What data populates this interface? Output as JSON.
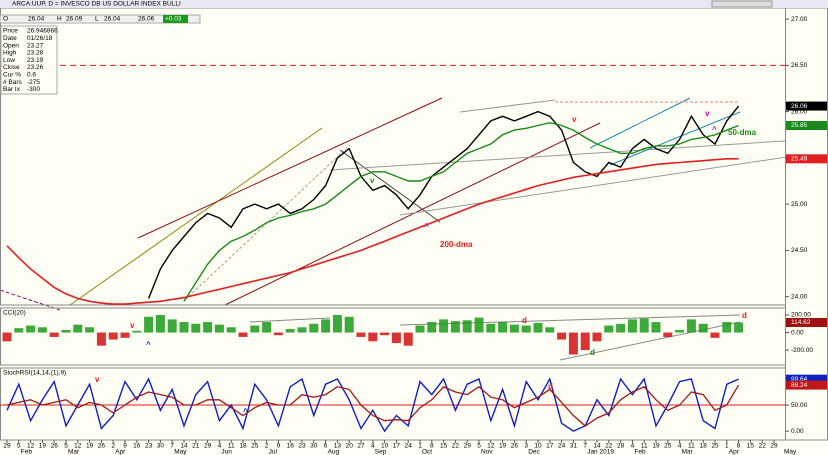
{
  "toolbar": {
    "symbol": "ARCA:UUP, D = INVESCO DB US DOLLAR INDEX BULLI",
    "o_label": "O",
    "open": "26.04",
    "h_label": "H",
    "high": "26.09",
    "l_label": "L",
    "low": "26.04",
    "close": "26.06",
    "change": "+0.03"
  },
  "info": [
    {
      "label": "Price",
      "value": "26.946866"
    },
    {
      "label": "Date",
      "value": "01/26/18"
    },
    {
      "label": "Open",
      "value": "23.27"
    },
    {
      "label": "High",
      "value": "23.28"
    },
    {
      "label": "Low",
      "value": "23.19"
    },
    {
      "label": "Close",
      "value": "23.26"
    },
    {
      "label": "Cur %",
      "value": "0.6"
    },
    {
      "label": "# Bars",
      "value": "-275"
    },
    {
      "label": "Bar Ix",
      "value": "-300"
    }
  ],
  "months": [
    "Feb",
    "Mar",
    "Apr",
    "May",
    "Jun",
    "Jul",
    "Aug",
    "Sep",
    "Oct",
    "Nov",
    "Dec",
    "Jan 2019",
    "Feb",
    "Mar",
    "Apr",
    "May"
  ],
  "chart_data": [
    {
      "type": "line",
      "pane": "price",
      "categories": [
        "29",
        "5",
        "12",
        "19",
        "26",
        "5",
        "12",
        "19",
        "26",
        "2",
        "9",
        "16",
        "23",
        "30",
        "7",
        "14",
        "21",
        "29",
        "4",
        "11",
        "18",
        "25",
        "2",
        "9",
        "16",
        "23",
        "30",
        "6",
        "13",
        "20",
        "27",
        "4",
        "10",
        "17",
        "24",
        "1",
        "8",
        "15",
        "22",
        "29",
        "5",
        "12",
        "19",
        "26",
        "3",
        "10",
        "17",
        "24",
        "31",
        "7",
        "14",
        "22",
        "28",
        "4",
        "11",
        "19",
        "25",
        "4",
        "11",
        "18",
        "25",
        "1",
        "8",
        "15",
        "22",
        "29"
      ],
      "ylim": [
        23.91,
        27.12
      ],
      "yticks": [
        {
          "value": 27,
          "label": "27.00"
        },
        {
          "value": 26.5,
          "label": "26.50"
        },
        {
          "value": 26,
          "label": "26.00"
        },
        {
          "value": 25.5,
          "label": "25.50"
        },
        {
          "value": 25,
          "label": "25.00"
        },
        {
          "value": 24.5,
          "label": "24.50"
        },
        {
          "value": 24,
          "label": "24.00"
        }
      ],
      "hline": {
        "value": 26.5,
        "color": "#e02020"
      },
      "series": [
        {
          "name": "UUP",
          "color": "#000000",
          "width": 1.4,
          "values": [
            null,
            null,
            null,
            null,
            null,
            null,
            null,
            null,
            null,
            null,
            null,
            null,
            23.98,
            24.3,
            24.5,
            24.65,
            24.8,
            24.9,
            24.85,
            24.75,
            24.95,
            25.0,
            24.95,
            25.0,
            24.9,
            24.95,
            25.05,
            25.2,
            25.5,
            25.6,
            25.3,
            25.15,
            25.2,
            25.1,
            24.95,
            25.1,
            25.3,
            25.4,
            25.5,
            25.6,
            25.75,
            25.9,
            25.95,
            25.9,
            25.95,
            26.0,
            25.95,
            25.8,
            25.45,
            25.35,
            25.3,
            25.45,
            25.4,
            25.6,
            25.7,
            25.6,
            25.55,
            25.7,
            25.95,
            25.75,
            25.65,
            25.9,
            26.06,
            null,
            null,
            null
          ]
        },
        {
          "name": "50-dma",
          "color": "#1a8a1a",
          "width": 1.4,
          "values": [
            null,
            null,
            null,
            null,
            null,
            null,
            null,
            null,
            null,
            null,
            null,
            null,
            null,
            null,
            null,
            23.95,
            24.15,
            24.35,
            24.5,
            24.6,
            24.65,
            24.72,
            24.8,
            24.85,
            24.88,
            24.92,
            24.95,
            25.0,
            25.1,
            25.2,
            25.3,
            25.35,
            25.35,
            25.3,
            25.25,
            25.25,
            25.3,
            25.35,
            25.45,
            25.55,
            25.6,
            25.65,
            25.75,
            25.8,
            25.82,
            25.85,
            25.88,
            25.85,
            25.8,
            25.72,
            25.65,
            25.6,
            25.55,
            25.55,
            25.6,
            25.63,
            25.63,
            25.65,
            25.7,
            25.72,
            25.75,
            25.8,
            25.85,
            null,
            null,
            null
          ]
        },
        {
          "name": "200-dma",
          "color": "#e02020",
          "width": 1.6,
          "values": [
            24.55,
            24.42,
            24.3,
            24.2,
            24.1,
            24.03,
            23.98,
            23.95,
            23.93,
            23.92,
            23.92,
            23.93,
            23.94,
            23.95,
            23.97,
            23.99,
            24.02,
            24.05,
            24.08,
            24.11,
            24.14,
            24.17,
            24.2,
            24.23,
            24.26,
            24.3,
            24.34,
            24.38,
            24.42,
            24.46,
            24.5,
            24.55,
            24.6,
            24.65,
            24.7,
            24.75,
            24.8,
            24.85,
            24.9,
            24.95,
            25.0,
            25.04,
            25.08,
            25.12,
            25.16,
            25.2,
            25.23,
            25.26,
            25.29,
            25.31,
            25.33,
            25.35,
            25.37,
            25.39,
            25.41,
            25.43,
            25.44,
            25.45,
            25.46,
            25.47,
            25.48,
            25.49,
            25.49,
            null,
            null,
            null
          ]
        }
      ],
      "last_values": [
        {
          "value": 26.06,
          "color": "#000000"
        },
        {
          "value": 25.85,
          "color": "#1a8a1a"
        },
        {
          "value": 25.49,
          "color": "#e02020"
        }
      ],
      "annotations": [
        {
          "text": "50-dma",
          "color": "#1a8a1a"
        },
        {
          "text": "200-dma",
          "color": "#e02020"
        },
        {
          "text": "v",
          "color": "#1a8a1a"
        },
        {
          "text": "v",
          "color": "#e02020"
        },
        {
          "text": "v",
          "color": "#d000d0"
        },
        {
          "text": "^",
          "color": "#d000d0"
        },
        {
          "text": "^",
          "color": "#d000d0"
        }
      ]
    },
    {
      "type": "bar",
      "pane": "cci",
      "title": "CCI(20)",
      "ylim": [
        -370,
        280
      ],
      "yticks": [
        {
          "value": 200,
          "label": "200.00"
        },
        {
          "value": 0,
          "label": "0.00"
        },
        {
          "value": -200,
          "label": "-200.00"
        }
      ],
      "positive_color": "#1a9a1a",
      "negative_color": "#d01010",
      "values": [
        -100,
        50,
        80,
        60,
        -50,
        30,
        90,
        60,
        -150,
        -80,
        -60,
        20,
        180,
        200,
        150,
        120,
        100,
        120,
        90,
        60,
        -50,
        80,
        120,
        -30,
        40,
        60,
        100,
        150,
        200,
        180,
        -50,
        -100,
        -30,
        -120,
        -150,
        80,
        120,
        150,
        130,
        140,
        170,
        100,
        120,
        90,
        80,
        110,
        60,
        -80,
        -250,
        -200,
        -100,
        80,
        100,
        150,
        160,
        120,
        -50,
        30,
        150,
        100,
        -60,
        120,
        114.62,
        null,
        null,
        null
      ],
      "last_values": [
        {
          "value": 114.62,
          "color": "#a01010"
        }
      ],
      "annotations": [
        {
          "text": "v",
          "color": "#e02020"
        },
        {
          "text": "^",
          "color": "#1030d0"
        },
        {
          "text": "d",
          "color": "#e02020"
        },
        {
          "text": "d",
          "color": "#1a8a1a"
        },
        {
          "text": "d",
          "color": "#e02020"
        }
      ]
    },
    {
      "type": "line",
      "pane": "stoch",
      "title": "StochRSI(14,14,(1),9)",
      "ylim": [
        -17,
        121
      ],
      "yticks": [
        {
          "value": 100,
          "label": "100.00"
        },
        {
          "value": 50,
          "label": "50.00"
        },
        {
          "value": 0,
          "label": "0.00"
        }
      ],
      "hline": {
        "value": 50,
        "color": "#e02020"
      },
      "series": [
        {
          "name": "StochRSI",
          "color": "#1020c0",
          "width": 1.4,
          "values": [
            40,
            90,
            20,
            60,
            95,
            10,
            50,
            90,
            5,
            30,
            95,
            60,
            100,
            40,
            80,
            10,
            70,
            95,
            20,
            50,
            5,
            90,
            60,
            10,
            85,
            100,
            30,
            90,
            100,
            60,
            5,
            40,
            0,
            30,
            10,
            95,
            70,
            100,
            40,
            90,
            100,
            20,
            80,
            10,
            95,
            60,
            100,
            15,
            0,
            10,
            60,
            30,
            100,
            70,
            100,
            10,
            50,
            95,
            100,
            20,
            5,
            90,
            99.64,
            null,
            null,
            null
          ]
        },
        {
          "name": "Signal",
          "color": "#a01818",
          "width": 1.3,
          "values": [
            50,
            55,
            60,
            50,
            55,
            60,
            45,
            55,
            50,
            35,
            50,
            65,
            75,
            70,
            65,
            50,
            50,
            60,
            60,
            45,
            30,
            45,
            55,
            50,
            50,
            70,
            65,
            70,
            85,
            80,
            50,
            30,
            20,
            22,
            20,
            45,
            60,
            85,
            75,
            70,
            85,
            65,
            60,
            45,
            55,
            65,
            80,
            55,
            30,
            10,
            25,
            35,
            60,
            75,
            85,
            60,
            40,
            50,
            75,
            70,
            40,
            50,
            88.24,
            null,
            null,
            null
          ]
        }
      ],
      "last_values": [
        {
          "value": 99.64,
          "color": "#1020c0"
        },
        {
          "value": 88.24,
          "color": "#c01818"
        }
      ],
      "annotations": [
        {
          "text": "v",
          "color": "#e02020"
        },
        {
          "text": "^",
          "color": "#1030d0"
        },
        {
          "text": "d",
          "color": "#e02020"
        }
      ]
    }
  ]
}
